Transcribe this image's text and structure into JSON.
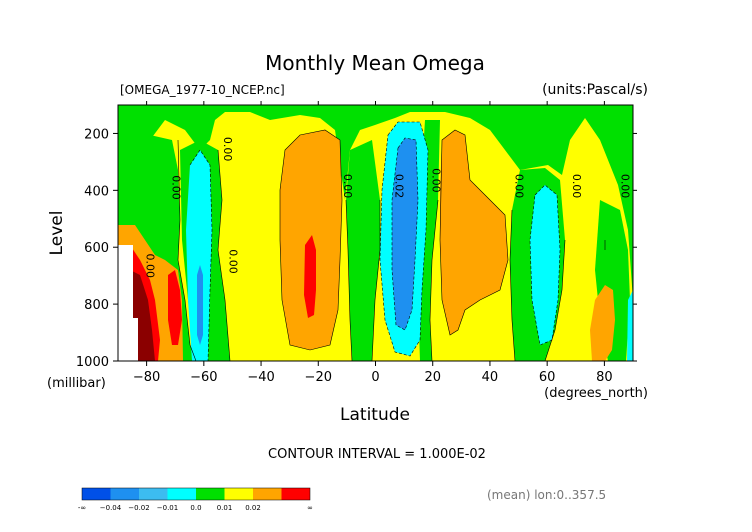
{
  "chart_data": {
    "type": "contour",
    "title": "Monthly Mean Omega",
    "file_label": "[OMEGA_1977-10_NCEP.nc]",
    "units_label": "(units:Pascal/s)",
    "xlabel": "Latitude",
    "x_units": "(degrees_north)",
    "ylabel": "Level",
    "y_units": "(millibar)",
    "xlim": [
      -90,
      90
    ],
    "ylim": [
      1000,
      100
    ],
    "x_ticks": [
      -80,
      -60,
      -40,
      -20,
      0,
      20,
      40,
      60,
      80
    ],
    "x_tick_labels": [
      "−80",
      "−60",
      "−40",
      "−20",
      "0",
      "20",
      "40",
      "60",
      "80"
    ],
    "y_ticks": [
      1000,
      800,
      600,
      400,
      200
    ],
    "y_tick_labels": [
      "1000",
      "800",
      "600",
      "400",
      "200"
    ],
    "contour_interval_label": "CONTOUR INTERVAL = 1.000E-02",
    "mean_label": "(mean) lon:0..357.5",
    "contour_labels": [
      {
        "text": "0.00",
        "lat": -71,
        "level": 390
      },
      {
        "text": "0.00",
        "lat": -53,
        "level": 255
      },
      {
        "text": "0.00",
        "lat": -80,
        "level": 665
      },
      {
        "text": "0.00",
        "lat": -51,
        "level": 650
      },
      {
        "text": "0.00",
        "lat": -11,
        "level": 385
      },
      {
        "text": "0.02",
        "lat": 7,
        "level": 385
      },
      {
        "text": "0.00",
        "lat": 20,
        "level": 365
      },
      {
        "text": "0.00",
        "lat": 49,
        "level": 385
      },
      {
        "text": "0.00",
        "lat": 69,
        "level": 385
      },
      {
        "text": "0.00",
        "lat": 86,
        "level": 385
      }
    ],
    "colorbar": {
      "bins": [
        {
          "color": "#0050e8"
        },
        {
          "color": "#1e90f0"
        },
        {
          "color": "#3cbcf0"
        },
        {
          "color": "#00ffff"
        },
        {
          "color": "#00e000"
        },
        {
          "color": "#ffff00"
        },
        {
          "color": "#ffa500"
        },
        {
          "color": "#ff0000"
        }
      ],
      "tick_labels": [
        "-∞",
        "−0.04",
        "−0.02",
        "−0.01",
        "0.0",
        "0.01",
        "0.02",
        "∞"
      ]
    }
  }
}
